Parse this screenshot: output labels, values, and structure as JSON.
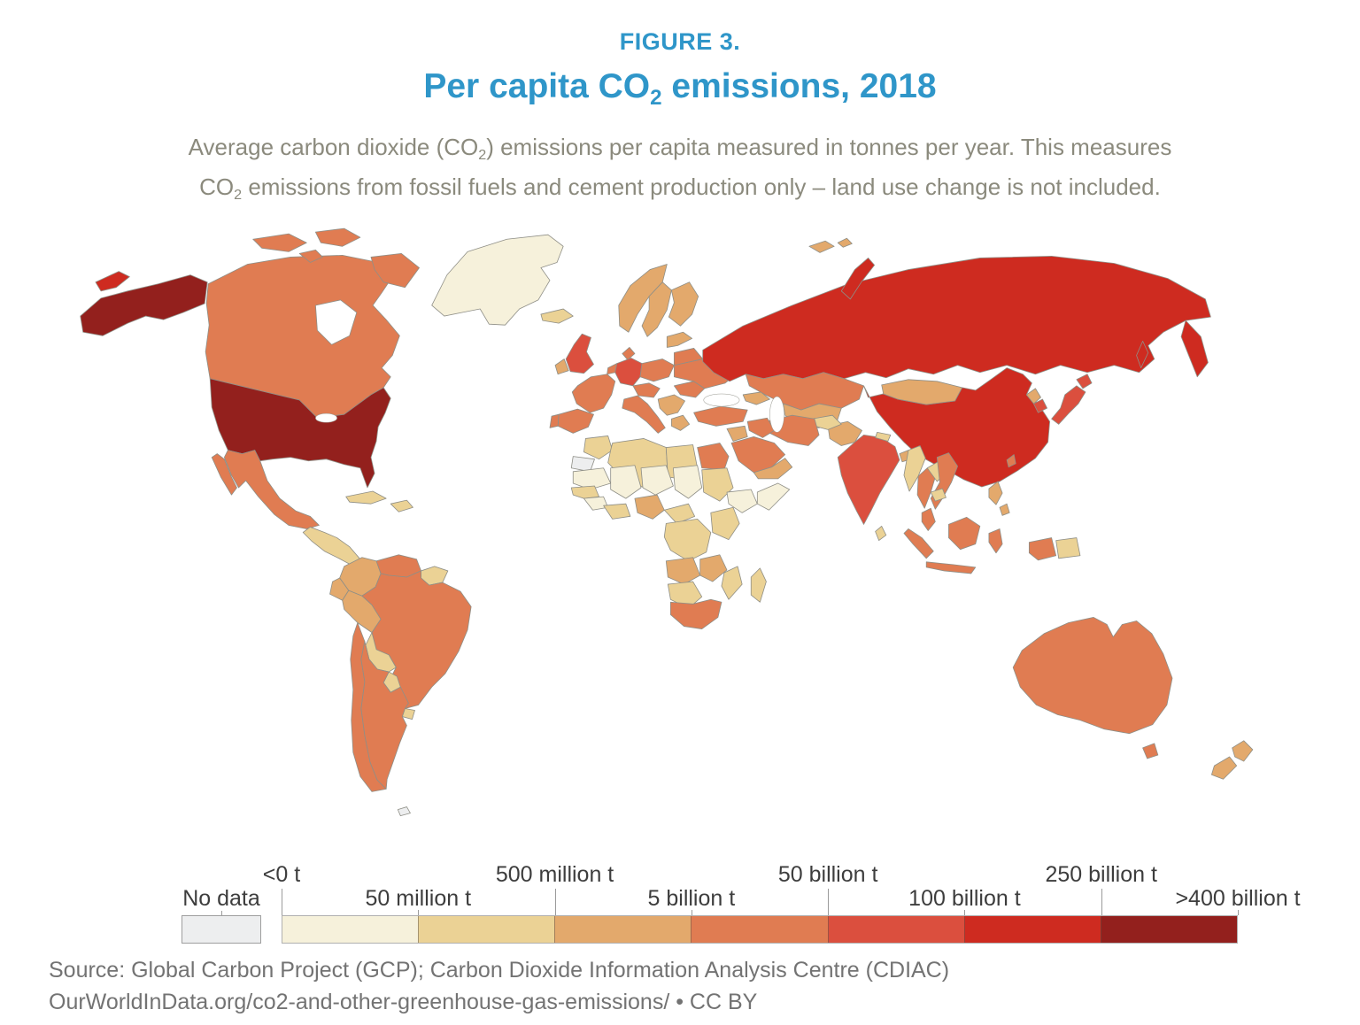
{
  "figure": {
    "label": "FIGURE 3."
  },
  "header": {
    "title_pre": "Per capita CO",
    "title_sub": "2",
    "title_post": " emissions, 2018",
    "subtitle_line1_pre": "Average carbon dioxide (CO",
    "subtitle_line1_sub": "2",
    "subtitle_line1_post": ") emissions per capita measured in tonnes per year. This measures",
    "subtitle_line2_pre": "CO",
    "subtitle_line2_sub": "2",
    "subtitle_line2_post": " emissions from fossil fuels and cement production only – land use change is not included."
  },
  "legend": {
    "no_data_label": "No data"
  },
  "source": {
    "line1": "Source: Global Carbon Project (GCP); Carbon Dioxide Information Analysis Centre (CDIAC)",
    "line2": "OurWorldInData.org/co2-and-other-greenhouse-gas-emissions/ • CC BY"
  },
  "colors": {
    "accent_blue": "#2F96C9",
    "subtitle_gray": "#8B8A7D",
    "source_gray": "#737373",
    "map_border": "#8F8F87",
    "no_data_border": "#9E9E9E"
  },
  "chart_data": {
    "type": "choropleth",
    "title": "Per capita CO2 emissions, 2018",
    "year": "2018",
    "bin_edges": [
      "<0 t",
      "50 million t",
      "500 million t",
      "5 billion t",
      "50 billion t",
      "100 billion t",
      "250 billion t",
      ">400 billion t"
    ],
    "bin_colors": [
      "#F6F1DB",
      "#EBD295",
      "#E3A96C",
      "#E07C52",
      "#DB4F3E",
      "#CE2B20",
      "#93201D"
    ],
    "no_data_color": "#EDEEEF",
    "legend_position": "bottom",
    "countries": {
      "greenland": 1,
      "chukotka": 6,
      "alaska": 7,
      "canada": 4,
      "canadian-arctic-1": 4,
      "canadian-arctic-2": 4,
      "canadian-arctic-3": 4,
      "canadian-arctic-4": 4,
      "usa": 7,
      "mexico": 4,
      "baja": 4,
      "central-america": 2,
      "cuba": 2,
      "hispaniola": 2,
      "colombia": 3,
      "venezuela": 4,
      "guianas": 2,
      "ecuador": 3,
      "peru": 3,
      "brazil": 4,
      "bolivia": 2,
      "paraguay": 2,
      "uruguay": 2,
      "chile": 4,
      "argentina": 4,
      "falklands": 0,
      "iceland": 2,
      "uk": 5,
      "ireland": 3,
      "norway": 3,
      "sweden": 3,
      "finland": 3,
      "denmark": 4,
      "benelux": 4,
      "germany": 5,
      "france": 4,
      "spain": 4,
      "portugal": 4,
      "poland": 4,
      "czech-austria": 4,
      "italy": 4,
      "balkans": 3,
      "greece": 3,
      "romania": 4,
      "ukraine": 4,
      "belarus": 4,
      "baltics": 3,
      "turkey": 4,
      "russia": 6,
      "novaya-zemlya": 6,
      "kamchatka": 6,
      "sakhalin": 6,
      "svalbard": 3,
      "kazakhstan": 4,
      "central-asia": 3,
      "caucasus": 3,
      "mongolia": 3,
      "china": 6,
      "taiwan": 4,
      "north-korea": 3,
      "south-korea": 5,
      "japan": 5,
      "hokkaido": 5,
      "india": 5,
      "pakistan": 3,
      "afghanistan": 2,
      "nepal": 2,
      "bangladesh": 3,
      "sri-lanka": 2,
      "iran": 4,
      "iraq": 4,
      "levant": 3,
      "saudi-arabia": 4,
      "yemen-oman": 3,
      "morocco": 2,
      "western-sahara": 0,
      "algeria": 2,
      "libya": 2,
      "egypt": 4,
      "mauritania": 1,
      "mali": 1,
      "niger": 1,
      "chad": 1,
      "sudan": 2,
      "ethiopia": 1,
      "somalia": 1,
      "senegal": 2,
      "guinea": 1,
      "ivory-ghana": 2,
      "nigeria": 3,
      "cameroon": 2,
      "drc": 2,
      "kenya-tanzania": 2,
      "angola": 3,
      "zambia-zimbabwe": 3,
      "namibia-botswana": 2,
      "mozambique": 2,
      "south-africa": 4,
      "madagascar": 2,
      "myanmar": 2,
      "thailand": 4,
      "laos": 2,
      "vietnam": 4,
      "cambodia": 2,
      "malaysia": 4,
      "sumatra": 4,
      "java": 4,
      "borneo": 4,
      "sulawesi": 4,
      "west-papua": 4,
      "png": 2,
      "philippines": 3,
      "philippines-2": 3,
      "australia": 4,
      "tasmania": 4,
      "nz-north": 3,
      "nz-south": 3
    }
  }
}
